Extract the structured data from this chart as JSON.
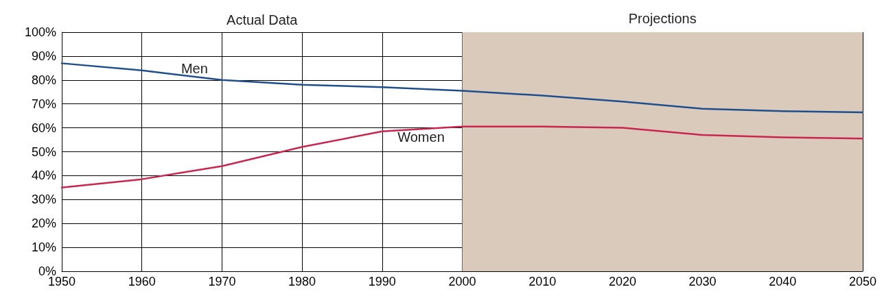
{
  "chart_data": {
    "type": "line",
    "x": [
      1950,
      1960,
      1970,
      1980,
      1990,
      2000,
      2010,
      2020,
      2030,
      2040,
      2050
    ],
    "series": [
      {
        "name": "Men",
        "color": "#1f4e8c",
        "values": [
          87,
          84,
          80,
          78,
          77,
          75.5,
          73.5,
          71,
          68,
          67,
          66.5
        ]
      },
      {
        "name": "Women",
        "color": "#c8254f",
        "values": [
          35,
          38.5,
          44,
          52,
          58.5,
          60.5,
          60.5,
          60,
          57,
          56,
          55.5
        ]
      }
    ],
    "xlim": [
      1950,
      2050
    ],
    "xticks": [
      1950,
      1960,
      1970,
      1980,
      1990,
      2000,
      2010,
      2020,
      2030,
      2040,
      2050
    ],
    "ylim": [
      0,
      100
    ],
    "yticks": [
      {
        "value": 0,
        "label": "0%"
      },
      {
        "value": 10,
        "label": "10%"
      },
      {
        "value": 20,
        "label": "20%"
      },
      {
        "value": 30,
        "label": "30%"
      },
      {
        "value": 40,
        "label": "40%"
      },
      {
        "value": 50,
        "label": "50%"
      },
      {
        "value": 60,
        "label": "60%"
      },
      {
        "value": 70,
        "label": "70%"
      },
      {
        "value": 80,
        "label": "80%"
      },
      {
        "value": 90,
        "label": "90%"
      },
      {
        "value": 100,
        "label": "100%"
      }
    ],
    "bands": [
      {
        "axis": "x",
        "from": 2000,
        "to": 2050,
        "label": "Projections",
        "color": "#d9cabb"
      }
    ],
    "annotations": [
      "Actual Data"
    ],
    "grid": true,
    "legend": false,
    "marker": "none",
    "line_style": "solid"
  }
}
